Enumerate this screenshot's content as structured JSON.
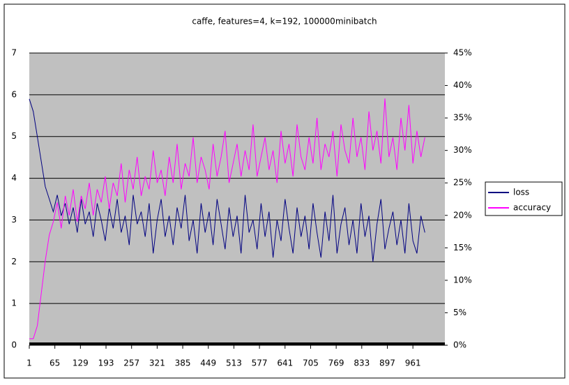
{
  "chart_data": {
    "type": "line",
    "title": "caffe, features=4, k=192, 100000minibatch",
    "x": [
      1,
      11,
      21,
      31,
      41,
      51,
      61,
      71,
      81,
      91,
      101,
      111,
      121,
      131,
      141,
      151,
      161,
      171,
      181,
      191,
      201,
      211,
      221,
      231,
      241,
      251,
      261,
      271,
      281,
      291,
      301,
      311,
      321,
      331,
      341,
      351,
      361,
      371,
      381,
      391,
      401,
      411,
      421,
      431,
      441,
      451,
      461,
      471,
      481,
      491,
      501,
      511,
      521,
      531,
      541,
      551,
      561,
      571,
      581,
      591,
      601,
      611,
      621,
      631,
      641,
      651,
      661,
      671,
      681,
      691,
      701,
      711,
      721,
      731,
      741,
      751,
      761,
      771,
      781,
      791,
      801,
      811,
      821,
      831,
      841,
      851,
      861,
      871,
      881,
      891,
      901,
      911,
      921,
      931,
      941,
      951,
      961,
      971,
      981,
      991
    ],
    "series": [
      {
        "name": "loss",
        "color": "#000080",
        "values": [
          5.9,
          5.6,
          5.0,
          4.4,
          3.8,
          3.5,
          3.2,
          3.6,
          3.1,
          3.4,
          2.9,
          3.3,
          2.7,
          3.5,
          2.9,
          3.2,
          2.6,
          3.4,
          3.0,
          2.5,
          3.3,
          2.8,
          3.5,
          2.7,
          3.1,
          2.4,
          3.6,
          2.9,
          3.2,
          2.6,
          3.4,
          2.2,
          3.0,
          3.5,
          2.6,
          3.1,
          2.4,
          3.3,
          2.8,
          3.6,
          2.5,
          3.0,
          2.2,
          3.4,
          2.7,
          3.2,
          2.4,
          3.5,
          2.9,
          2.3,
          3.3,
          2.6,
          3.1,
          2.2,
          3.6,
          2.7,
          3.0,
          2.3,
          3.4,
          2.6,
          3.2,
          2.1,
          3.0,
          2.5,
          3.5,
          2.8,
          2.2,
          3.3,
          2.6,
          3.1,
          2.3,
          3.4,
          2.7,
          2.1,
          3.2,
          2.5,
          3.6,
          2.2,
          2.9,
          3.3,
          2.4,
          3.0,
          2.2,
          3.4,
          2.6,
          3.1,
          2.0,
          2.9,
          3.5,
          2.3,
          2.8,
          3.2,
          2.4,
          3.0,
          2.2,
          3.4,
          2.5,
          2.2,
          3.1,
          2.7
        ]
      },
      {
        "name": "accuracy",
        "color": "#ff00ff",
        "axis": "y2",
        "values": [
          1,
          1,
          3,
          8,
          13,
          17,
          19,
          22,
          18,
          23,
          20,
          24,
          19,
          23,
          21,
          25,
          20,
          24,
          22,
          26,
          21,
          25,
          23,
          28,
          22,
          27,
          24,
          29,
          23,
          26,
          24,
          30,
          25,
          27,
          23,
          29,
          25,
          31,
          24,
          28,
          26,
          32,
          25,
          29,
          27,
          24,
          31,
          26,
          29,
          33,
          25,
          28,
          31,
          26,
          30,
          27,
          34,
          26,
          29,
          32,
          27,
          30,
          25,
          33,
          28,
          31,
          26,
          34,
          29,
          27,
          32,
          28,
          35,
          27,
          31,
          29,
          33,
          26,
          34,
          30,
          28,
          35,
          29,
          32,
          27,
          36,
          30,
          33,
          28,
          38,
          29,
          32,
          27,
          35,
          30,
          37,
          28,
          33,
          29,
          32
        ]
      }
    ],
    "xlim": [
      1,
      1041
    ],
    "xticks": [
      1,
      65,
      129,
      193,
      257,
      321,
      385,
      449,
      513,
      577,
      641,
      705,
      769,
      833,
      897,
      961
    ],
    "ylim": [
      0,
      7
    ],
    "yticks": [
      0,
      1,
      2,
      3,
      4,
      5,
      6,
      7
    ],
    "y2lim": [
      0,
      45
    ],
    "y2ticks": [
      {
        "value": 0,
        "label": "0%"
      },
      {
        "value": 5,
        "label": "5%"
      },
      {
        "value": 10,
        "label": "10%"
      },
      {
        "value": 15,
        "label": "15%"
      },
      {
        "value": 20,
        "label": "20%"
      },
      {
        "value": 25,
        "label": "25%"
      },
      {
        "value": 30,
        "label": "30%"
      },
      {
        "value": 35,
        "label": "35%"
      },
      {
        "value": 40,
        "label": "40%"
      },
      {
        "value": 45,
        "label": "45%"
      }
    ],
    "grid": true,
    "legend": "right"
  }
}
